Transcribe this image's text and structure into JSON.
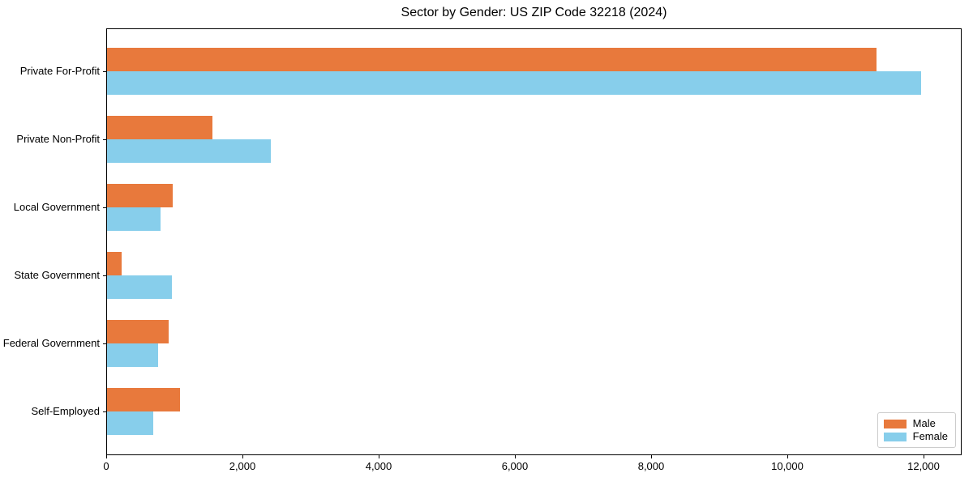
{
  "title": "Sector by Gender: US ZIP Code 32218 (2024)",
  "chart_data": {
    "type": "bar",
    "orientation": "horizontal",
    "title": "Sector by Gender: US ZIP Code 32218 (2024)",
    "xlabel": "",
    "ylabel": "",
    "categories": [
      "Private For-Profit",
      "Private Non-Profit",
      "Local Government",
      "State Government",
      "Federal Government",
      "Self-Employed"
    ],
    "series": [
      {
        "name": "Male",
        "color": "#e8793c",
        "values": [
          11300,
          1550,
          970,
          220,
          900,
          1070
        ]
      },
      {
        "name": "Female",
        "color": "#87ceeb",
        "values": [
          11950,
          2400,
          780,
          950,
          750,
          680
        ]
      }
    ],
    "xlim": [
      0,
      12560
    ],
    "x_ticks": [
      0,
      2000,
      4000,
      6000,
      8000,
      10000,
      12000
    ],
    "x_tick_labels": [
      "0",
      "2,000",
      "4,000",
      "6,000",
      "8,000",
      "10,000",
      "12,000"
    ],
    "grid": false,
    "legend_position": "lower right",
    "frame_color": "#000000",
    "background_color": "#ffffff"
  },
  "legend": {
    "items": [
      {
        "label": "Male",
        "color": "#e8793c"
      },
      {
        "label": "Female",
        "color": "#87ceeb"
      }
    ]
  }
}
